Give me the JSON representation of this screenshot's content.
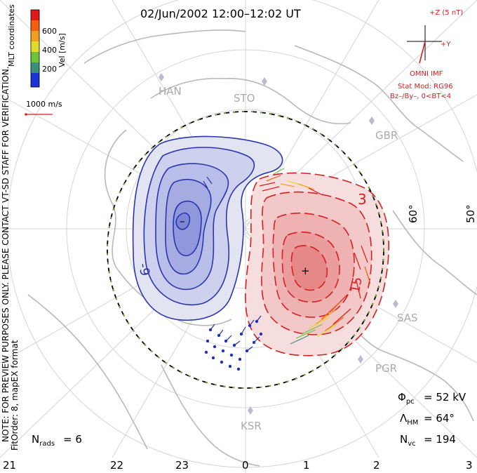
{
  "title": "02/Jun/2002 12:00–12:02 UT",
  "colorbar": {
    "label": "Vel [m/s]",
    "ticks": [
      "200",
      "400",
      "600"
    ],
    "colors": [
      "#1c33d6",
      "#3a8f78",
      "#6ec33a",
      "#e0dc2a",
      "#f0a020",
      "#f06010",
      "#e01818"
    ]
  },
  "coord_label": "MLT coordinates",
  "vector_scale": "1000 m/s",
  "note_line1": "NOTE: FOR PREVIEW PURPOSES ONLY. PLEASE CONTACT VT-SD STAFF FOR VERIFICATION.",
  "note_line2": "FitOrder: 8, mapEX format",
  "imf": {
    "z_label": "+Z (5 nT)",
    "y_label": "+Y",
    "source": "OMNI IMF",
    "stat_mod": "Stat Mod: RG96",
    "condition": "Bz–/By–, 0<BT<4"
  },
  "stations": [
    "HAN",
    "STO",
    "GBR",
    "SAS",
    "PGR",
    "KSR"
  ],
  "latitudes": [
    "60°",
    "50°"
  ],
  "contour_labels": {
    "neg": "-9",
    "pos1": "3",
    "pos2": "15"
  },
  "markers": {
    "min": "–",
    "max": "+"
  },
  "stats": {
    "phi_pc": "= 52 kV",
    "lambda_hm": "= 64°",
    "n_vc": "= 194",
    "n_rads": "= 6"
  },
  "mlt_ticks": [
    "21",
    "22",
    "23",
    "0",
    "1",
    "2",
    "3"
  ]
}
